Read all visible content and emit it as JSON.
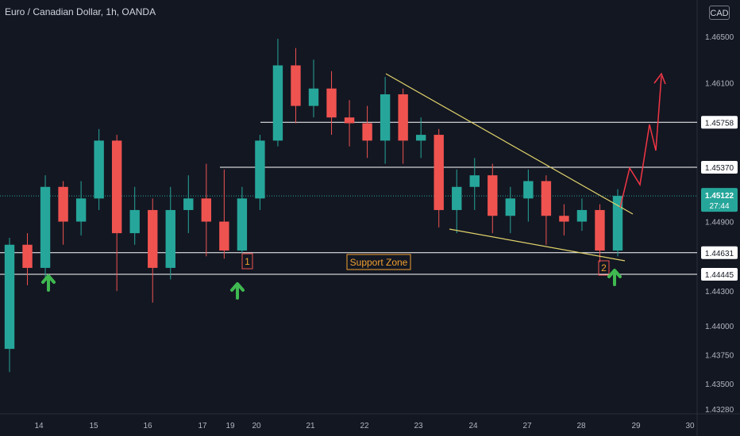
{
  "header": {
    "symbol_title": "Euro / Canadian Dollar, 1h, OANDA",
    "currency_label": "CAD"
  },
  "colors": {
    "background": "#131722",
    "up": "#26a69a",
    "down": "#ef5350",
    "trendline": "#e0d36b",
    "level": "#ffffff",
    "projection": "#f23645",
    "arrow": "#3fb950",
    "label_text": "#f0a030"
  },
  "chart_data": {
    "type": "candlestick",
    "symbol": "EURCAD",
    "timeframe": "1h",
    "y_ticks": [
      1.465,
      1.461,
      1.4575,
      1.4537,
      1.449,
      1.4463,
      1.443,
      1.44,
      1.4375,
      1.435,
      1.4328
    ],
    "y_tick_labels": [
      "1.46500",
      "1.46100",
      "1.45750",
      "1.45370",
      "1.44900",
      "1.44631",
      "1.44300",
      "1.44000",
      "1.43750",
      "1.43500",
      "1.43280"
    ],
    "ylim": [
      1.4326,
      1.4672
    ],
    "x_ticks": [
      "14",
      "15",
      "16",
      "17",
      "19",
      "20",
      "21",
      "22",
      "23",
      "24",
      "27",
      "28",
      "29",
      "30"
    ],
    "levels": [
      {
        "value": 1.45758,
        "label": "1.45758"
      },
      {
        "value": 1.4537,
        "label": "1.45370"
      },
      {
        "value": 1.44631,
        "label": "1.44631"
      },
      {
        "value": 1.44445,
        "label": "1.44445"
      }
    ],
    "current_price": {
      "value": 1.45122,
      "label": "1.45122",
      "countdown": "27:44"
    },
    "annotations": {
      "support_zone": "Support Zone",
      "touch_1": "1",
      "touch_2": "2"
    },
    "candle_series": [
      {
        "d": "14",
        "o": 1.438,
        "c": 1.447,
        "h": 1.4476,
        "l": 1.436
      },
      {
        "d": "14",
        "o": 1.447,
        "c": 1.445,
        "h": 1.448,
        "l": 1.4435
      },
      {
        "d": "14",
        "o": 1.445,
        "c": 1.452,
        "h": 1.453,
        "l": 1.444
      },
      {
        "d": "15",
        "o": 1.452,
        "c": 1.449,
        "h": 1.4525,
        "l": 1.447
      },
      {
        "d": "15",
        "o": 1.449,
        "c": 1.451,
        "h": 1.4525,
        "l": 1.4478
      },
      {
        "d": "15",
        "o": 1.451,
        "c": 1.456,
        "h": 1.457,
        "l": 1.45
      },
      {
        "d": "16",
        "o": 1.456,
        "c": 1.448,
        "h": 1.4565,
        "l": 1.443
      },
      {
        "d": "16",
        "o": 1.448,
        "c": 1.45,
        "h": 1.452,
        "l": 1.447
      },
      {
        "d": "16",
        "o": 1.45,
        "c": 1.445,
        "h": 1.451,
        "l": 1.442
      },
      {
        "d": "17",
        "o": 1.445,
        "c": 1.45,
        "h": 1.452,
        "l": 1.444
      },
      {
        "d": "17",
        "o": 1.45,
        "c": 1.451,
        "h": 1.453,
        "l": 1.448
      },
      {
        "d": "17",
        "o": 1.451,
        "c": 1.449,
        "h": 1.454,
        "l": 1.446
      },
      {
        "d": "19",
        "o": 1.449,
        "c": 1.4465,
        "h": 1.4535,
        "l": 1.4458
      },
      {
        "d": "19",
        "o": 1.4465,
        "c": 1.451,
        "h": 1.452,
        "l": 1.4462
      },
      {
        "d": "20",
        "o": 1.451,
        "c": 1.456,
        "h": 1.4565,
        "l": 1.45
      },
      {
        "d": "20",
        "o": 1.456,
        "c": 1.4625,
        "h": 1.4648,
        "l": 1.4555
      },
      {
        "d": "21",
        "o": 1.4625,
        "c": 1.459,
        "h": 1.464,
        "l": 1.4575
      },
      {
        "d": "21",
        "o": 1.459,
        "c": 1.4605,
        "h": 1.463,
        "l": 1.458
      },
      {
        "d": "21",
        "o": 1.4605,
        "c": 1.458,
        "h": 1.462,
        "l": 1.4565
      },
      {
        "d": "22",
        "o": 1.458,
        "c": 1.4575,
        "h": 1.4595,
        "l": 1.4555
      },
      {
        "d": "22",
        "o": 1.4575,
        "c": 1.456,
        "h": 1.459,
        "l": 1.4545
      },
      {
        "d": "22",
        "o": 1.456,
        "c": 1.46,
        "h": 1.4615,
        "l": 1.454
      },
      {
        "d": "23",
        "o": 1.46,
        "c": 1.456,
        "h": 1.4605,
        "l": 1.454
      },
      {
        "d": "23",
        "o": 1.456,
        "c": 1.4565,
        "h": 1.458,
        "l": 1.4545
      },
      {
        "d": "23",
        "o": 1.4565,
        "c": 1.45,
        "h": 1.457,
        "l": 1.4485
      },
      {
        "d": "24",
        "o": 1.45,
        "c": 1.452,
        "h": 1.4535,
        "l": 1.448
      },
      {
        "d": "24",
        "o": 1.452,
        "c": 1.453,
        "h": 1.4545,
        "l": 1.45
      },
      {
        "d": "24",
        "o": 1.453,
        "c": 1.4495,
        "h": 1.454,
        "l": 1.448
      },
      {
        "d": "27",
        "o": 1.4495,
        "c": 1.451,
        "h": 1.452,
        "l": 1.448
      },
      {
        "d": "27",
        "o": 1.451,
        "c": 1.4525,
        "h": 1.4535,
        "l": 1.449
      },
      {
        "d": "27",
        "o": 1.4525,
        "c": 1.4495,
        "h": 1.453,
        "l": 1.447
      },
      {
        "d": "28",
        "o": 1.4495,
        "c": 1.449,
        "h": 1.4505,
        "l": 1.4478
      },
      {
        "d": "28",
        "o": 1.449,
        "c": 1.45,
        "h": 1.451,
        "l": 1.4482
      },
      {
        "d": "28",
        "o": 1.45,
        "c": 1.4465,
        "h": 1.4505,
        "l": 1.4455
      },
      {
        "d": "28",
        "o": 1.4465,
        "c": 1.45122,
        "h": 1.4518,
        "l": 1.446
      }
    ]
  }
}
